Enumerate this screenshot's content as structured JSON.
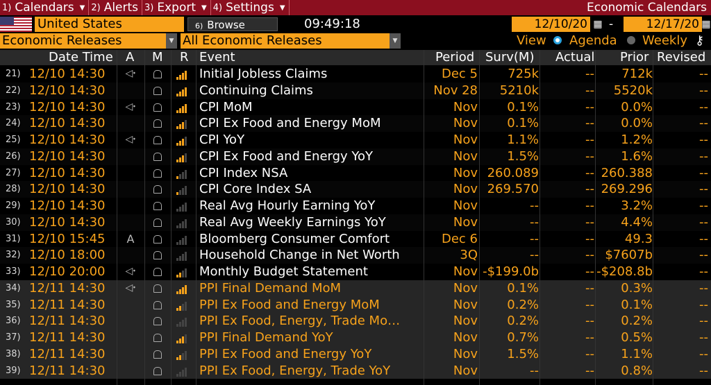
{
  "menu": [
    {
      "num": "1)",
      "label": "Calendars"
    },
    {
      "num": "2)",
      "label": "Alerts"
    },
    {
      "num": "3)",
      "label": "Export"
    },
    {
      "num": "4)",
      "label": "Settings"
    }
  ],
  "window_title": "Economic Calendars",
  "country": "United States",
  "browse": {
    "num": "6)",
    "label": "Browse"
  },
  "clock": "09:49:18",
  "date_from": "12/10/20",
  "date_to": "12/17/20",
  "date_sep": "-",
  "filter1": "Economic Releases",
  "filter2": "All Economic Releases",
  "view": {
    "label": "View",
    "agenda": "Agenda",
    "weekly": "Weekly",
    "selected": "agenda"
  },
  "columns": [
    "Date Time",
    "A",
    "M",
    "R",
    "Event",
    "Period",
    "Surv(M)",
    "Actual",
    "Prior",
    "Revised"
  ],
  "colors": {
    "accent": "#f7a21b",
    "menu_bar": "#8b0f1f",
    "radio": "#29a3e0"
  },
  "rows": [
    {
      "idx": "21)",
      "date": "12/10 14:30",
      "alert": true,
      "rel": 4,
      "event": "Initial Jobless Claims",
      "period": "Dec 5",
      "surv": "725k",
      "actual": "--",
      "prior": "712k",
      "revised": "--"
    },
    {
      "idx": "22)",
      "date": "12/10 14:30",
      "alert": false,
      "rel": 4,
      "event": "Continuing Claims",
      "period": "Nov 28",
      "surv": "5210k",
      "actual": "--",
      "prior": "5520k",
      "revised": "--"
    },
    {
      "idx": "23)",
      "date": "12/10 14:30",
      "alert": true,
      "rel": 4,
      "event": "CPI MoM",
      "period": "Nov",
      "surv": "0.1%",
      "actual": "--",
      "prior": "0.0%",
      "revised": "--"
    },
    {
      "idx": "24)",
      "date": "12/10 14:30",
      "alert": false,
      "rel": 3,
      "event": "CPI Ex Food and Energy MoM",
      "period": "Nov",
      "surv": "0.1%",
      "actual": "--",
      "prior": "0.0%",
      "revised": "--"
    },
    {
      "idx": "25)",
      "date": "12/10 14:30",
      "alert": true,
      "rel": 3,
      "event": "CPI YoY",
      "period": "Nov",
      "surv": "1.1%",
      "actual": "--",
      "prior": "1.2%",
      "revised": "--"
    },
    {
      "idx": "26)",
      "date": "12/10 14:30",
      "alert": false,
      "rel": 3,
      "event": "CPI Ex Food and Energy YoY",
      "period": "Nov",
      "surv": "1.5%",
      "actual": "--",
      "prior": "1.6%",
      "revised": "--"
    },
    {
      "idx": "27)",
      "date": "12/10 14:30",
      "alert": false,
      "rel": 1,
      "event": "CPI Index NSA",
      "period": "Nov",
      "surv": "260.089",
      "actual": "--",
      "prior": "260.388",
      "revised": "--"
    },
    {
      "idx": "28)",
      "date": "12/10 14:30",
      "alert": false,
      "rel": 1,
      "event": "CPI Core Index SA",
      "period": "Nov",
      "surv": "269.570",
      "actual": "--",
      "prior": "269.296",
      "revised": "--"
    },
    {
      "idx": "29)",
      "date": "12/10 14:30",
      "alert": false,
      "rel": 0,
      "event": "Real Avg Hourly Earning YoY",
      "period": "Nov",
      "surv": "--",
      "actual": "--",
      "prior": "3.2%",
      "revised": "--"
    },
    {
      "idx": "30)",
      "date": "12/10 14:30",
      "alert": false,
      "rel": 0,
      "event": "Real Avg Weekly Earnings YoY",
      "period": "Nov",
      "surv": "--",
      "actual": "--",
      "prior": "4.4%",
      "revised": "--"
    },
    {
      "idx": "31)",
      "date": "12/10 15:45",
      "alert_text": "A",
      "rel": 0,
      "event": "Bloomberg Consumer Comfort",
      "period": "Dec 6",
      "surv": "--",
      "actual": "--",
      "prior": "49.3",
      "revised": "--"
    },
    {
      "idx": "32)",
      "date": "12/10 18:00",
      "alert": false,
      "rel": 0,
      "event": "Household Change in Net Worth",
      "period": "3Q",
      "surv": "--",
      "actual": "--",
      "prior": "$7607b",
      "revised": "--"
    },
    {
      "idx": "33)",
      "date": "12/10 20:00",
      "alert": true,
      "rel": 2,
      "event": "Monthly Budget Statement",
      "period": "Nov",
      "surv": "-$199.0b",
      "actual": "--",
      "prior": "-$208.8b",
      "revised": "--"
    },
    {
      "idx": "34)",
      "date": "12/11 14:30",
      "alert": true,
      "rel": 4,
      "event": "PPI Final Demand MoM",
      "period": "Nov",
      "surv": "0.1%",
      "actual": "--",
      "prior": "0.3%",
      "revised": "--",
      "future": true
    },
    {
      "idx": "35)",
      "date": "12/11 14:30",
      "alert": false,
      "rel": 2,
      "event": "PPI Ex Food and Energy MoM",
      "period": "Nov",
      "surv": "0.2%",
      "actual": "--",
      "prior": "0.1%",
      "revised": "--",
      "future": true
    },
    {
      "idx": "36)",
      "date": "12/11 14:30",
      "alert": false,
      "rel": 0,
      "event": "PPI Ex Food, Energy, Trade Mo…",
      "period": "Nov",
      "surv": "0.2%",
      "actual": "--",
      "prior": "0.2%",
      "revised": "--",
      "future": true
    },
    {
      "idx": "37)",
      "date": "12/11 14:30",
      "alert": false,
      "rel": 3,
      "event": "PPI Final Demand YoY",
      "period": "Nov",
      "surv": "0.7%",
      "actual": "--",
      "prior": "0.5%",
      "revised": "--",
      "future": true
    },
    {
      "idx": "38)",
      "date": "12/11 14:30",
      "alert": false,
      "rel": 2,
      "event": "PPI Ex Food and Energy YoY",
      "period": "Nov",
      "surv": "1.5%",
      "actual": "--",
      "prior": "1.1%",
      "revised": "--",
      "future": true
    },
    {
      "idx": "39)",
      "date": "12/11 14:30",
      "alert": false,
      "rel": 0,
      "event": "PPI Ex Food, Energy, Trade YoY",
      "period": "Nov",
      "surv": "--",
      "actual": "--",
      "prior": "0.8%",
      "revised": "--",
      "future": true
    }
  ]
}
